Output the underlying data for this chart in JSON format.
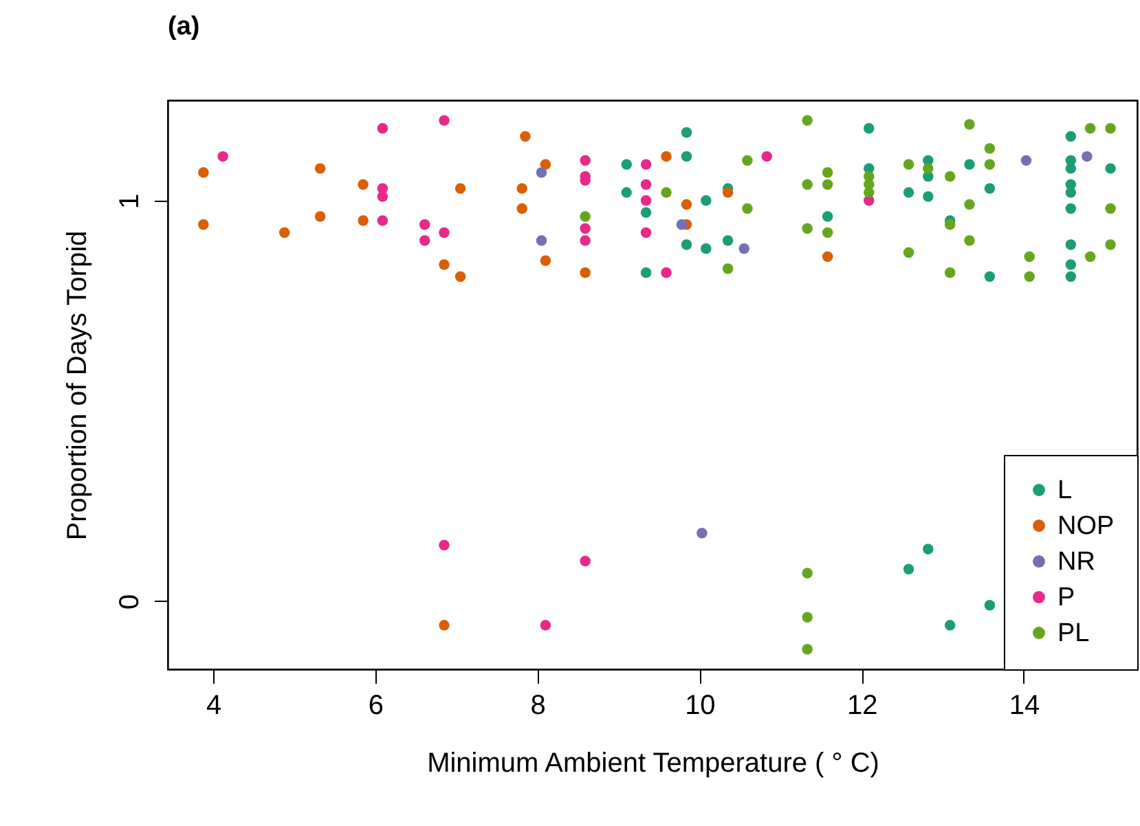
{
  "chart_data": {
    "type": "scatter",
    "title": "(a)",
    "xlabel": "Minimum Ambient Temperature  ( ° C)",
    "ylabel": "Proportion of Days Torpid",
    "xlim": [
      3.44,
      15.4
    ],
    "ylim": [
      -0.17,
      1.25
    ],
    "xticks": [
      4,
      6,
      8,
      10,
      12,
      14
    ],
    "yticks": [
      0,
      1
    ],
    "grid": false,
    "legend": "bottom right",
    "marker": "circle",
    "series": [
      {
        "name": "L",
        "color": "#1b9e77",
        "x": [
          9.1,
          9.1,
          9.34,
          9.34,
          9.84,
          9.84,
          9.84,
          10.08,
          10.08,
          10.35,
          10.35,
          11.58,
          12.09,
          12.09,
          12.58,
          12.58,
          12.82,
          12.82,
          12.82,
          12.82,
          13.09,
          13.09,
          13.33,
          13.58,
          13.58,
          13.58,
          14.58,
          14.58,
          14.58,
          14.58,
          14.58,
          14.58,
          14.58,
          14.58,
          14.58,
          15.07
        ],
        "values": [
          1.09,
          1.02,
          0.97,
          0.82,
          1.17,
          1.11,
          0.89,
          1.0,
          0.88,
          1.03,
          0.9,
          0.96,
          1.18,
          1.08,
          1.02,
          0.08,
          1.1,
          1.06,
          1.01,
          0.13,
          0.95,
          -0.06,
          1.09,
          1.03,
          0.81,
          -0.01,
          1.16,
          1.1,
          1.08,
          1.04,
          1.02,
          0.98,
          0.89,
          0.84,
          0.81,
          1.08
        ]
      },
      {
        "name": "NOP",
        "color": "#d95f02",
        "x": [
          3.88,
          3.88,
          4.88,
          5.32,
          5.32,
          5.85,
          5.85,
          6.85,
          6.85,
          7.05,
          7.05,
          7.81,
          7.81,
          7.85,
          8.1,
          8.1,
          8.59,
          9.59,
          9.84,
          9.84,
          10.35,
          11.58
        ],
        "values": [
          1.07,
          0.94,
          0.92,
          1.08,
          0.96,
          1.04,
          0.95,
          0.84,
          -0.06,
          1.03,
          0.81,
          1.03,
          0.98,
          1.16,
          1.09,
          0.85,
          0.82,
          1.11,
          0.99,
          0.94,
          1.02,
          0.86
        ]
      },
      {
        "name": "NR",
        "color": "#7570b3",
        "x": [
          8.05,
          8.05,
          9.78,
          10.03,
          10.55,
          14.03,
          14.78
        ],
        "values": [
          1.07,
          0.9,
          0.94,
          0.17,
          0.88,
          1.1,
          1.11
        ]
      },
      {
        "name": "P",
        "color": "#e7298a",
        "x": [
          4.12,
          6.09,
          6.09,
          6.09,
          6.09,
          6.61,
          6.61,
          6.85,
          6.85,
          6.85,
          8.1,
          8.59,
          8.59,
          8.59,
          8.59,
          8.59,
          8.59,
          9.34,
          9.34,
          9.34,
          9.34,
          9.59,
          10.83,
          12.09
        ],
        "values": [
          1.11,
          1.18,
          1.03,
          1.01,
          0.95,
          0.94,
          0.9,
          1.2,
          0.92,
          0.14,
          -0.06,
          1.1,
          1.06,
          1.05,
          0.93,
          0.9,
          0.1,
          1.09,
          1.04,
          1.0,
          0.92,
          0.82,
          1.11,
          1.0
        ]
      },
      {
        "name": "PL",
        "color": "#66a61e",
        "x": [
          8.59,
          9.59,
          10.35,
          10.59,
          10.59,
          11.33,
          11.33,
          11.33,
          11.33,
          11.33,
          11.33,
          11.58,
          11.58,
          11.58,
          12.09,
          12.09,
          12.09,
          12.58,
          12.58,
          12.82,
          13.09,
          13.09,
          13.09,
          13.33,
          13.33,
          13.33,
          13.58,
          13.58,
          14.07,
          14.07,
          14.82,
          14.82,
          15.07,
          15.07,
          15.07
        ],
        "values": [
          0.96,
          1.02,
          0.83,
          1.1,
          0.98,
          1.2,
          1.04,
          0.93,
          0.07,
          -0.04,
          -0.12,
          1.07,
          1.04,
          0.92,
          1.06,
          1.04,
          1.02,
          1.09,
          0.87,
          1.08,
          1.06,
          0.94,
          0.82,
          1.19,
          0.99,
          0.9,
          1.13,
          1.09,
          0.86,
          0.81,
          1.18,
          0.86,
          1.18,
          0.98,
          0.89
        ]
      }
    ]
  }
}
